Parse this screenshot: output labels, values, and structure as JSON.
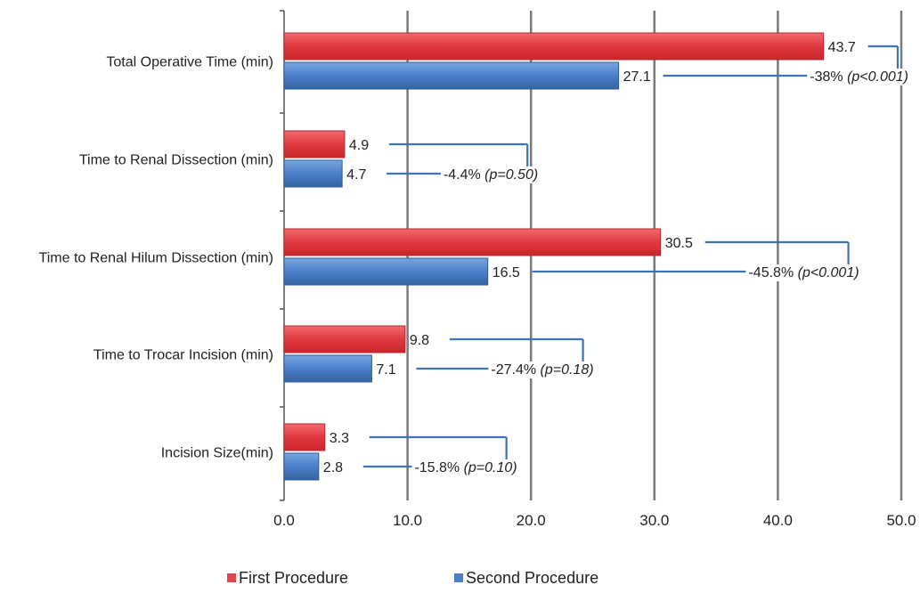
{
  "chart_data": {
    "type": "bar",
    "orientation": "horizontal",
    "categories": [
      "Total Operative Time (min)",
      "Time to Renal Dissection (min)",
      "Time to Renal Hilum Dissection (min)",
      "Time to Trocar Incision (min)",
      "Incision Size(min)"
    ],
    "series": [
      {
        "name": "First Procedure",
        "color": "#e0474c",
        "values": [
          43.7,
          4.9,
          30.5,
          9.8,
          3.3
        ],
        "labels": [
          "43.7",
          "4.9",
          "30.5",
          "9.8",
          "3.3"
        ]
      },
      {
        "name": "Second Procedure",
        "color": "#4a7fc8",
        "values": [
          27.1,
          4.7,
          16.5,
          7.1,
          2.8
        ],
        "labels": [
          "27.1",
          "4.7",
          "16.5",
          "7.1",
          "2.8"
        ]
      }
    ],
    "annotations": [
      {
        "change": "-38%",
        "p": "(p<0.001)",
        "bracket_x": 50.0
      },
      {
        "change": "-4.4%",
        "p": "(p=0.50)",
        "bracket_x": 20.0
      },
      {
        "change": "-45.8%",
        "p": "(p<0.001)",
        "bracket_x": 46.0
      },
      {
        "change": "-27.4%",
        "p": "(p=0.18)",
        "bracket_x": 24.5
      },
      {
        "change": "-15.8%",
        "p": "(p=0.10)",
        "bracket_x": 18.3
      }
    ],
    "x_ticks": [
      "0.0",
      "10.0",
      "20.0",
      "30.0",
      "40.0",
      "50.0"
    ],
    "xlim": [
      0,
      50
    ],
    "grid": true,
    "legend_position": "bottom",
    "title": "",
    "xlabel": "",
    "ylabel": ""
  }
}
